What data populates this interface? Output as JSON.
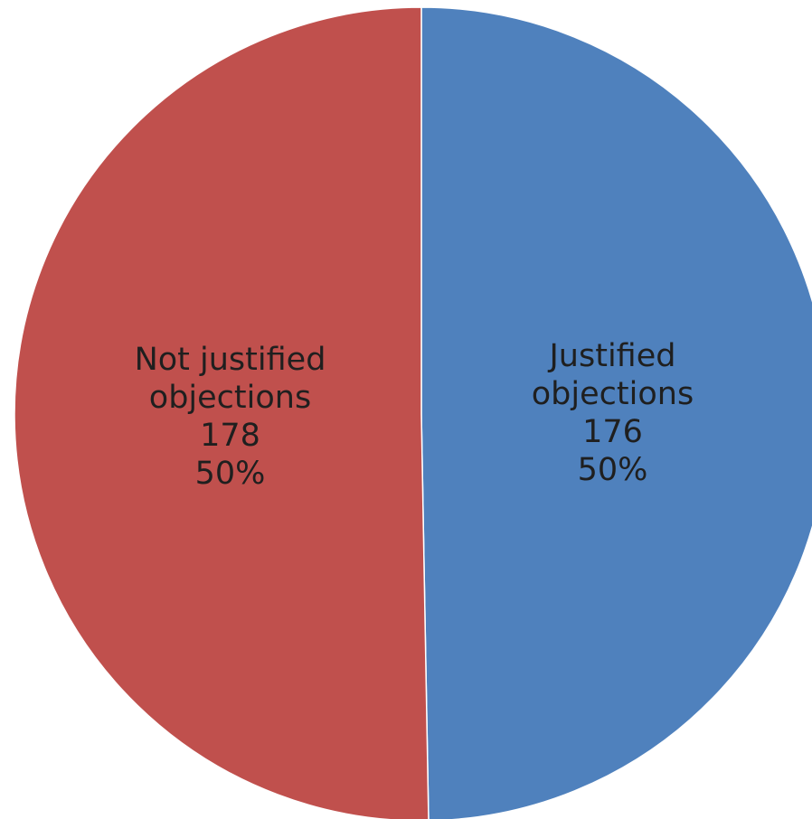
{
  "chart_data": {
    "type": "pie",
    "title": "",
    "start_angle_deg": 0,
    "direction": "clockwise",
    "slices": [
      {
        "name_lines": [
          "Justified",
          "objections"
        ],
        "value": 176,
        "value_label": "176",
        "percent_label": "50%",
        "color": "#4f81bd"
      },
      {
        "name_lines": [
          "Not justified",
          "objections"
        ],
        "value": 178,
        "value_label": "178",
        "percent_label": "50%",
        "color": "#c0504d"
      }
    ],
    "legend": "none",
    "border_color": "#ffffff"
  }
}
